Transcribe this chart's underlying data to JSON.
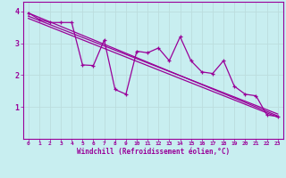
{
  "xlabel": "Windchill (Refroidissement éolien,°C)",
  "background_color": "#c8eef0",
  "plot_color": "#990099",
  "grid_color": "#bbdddd",
  "xlim": [
    -0.5,
    23.5
  ],
  "ylim": [
    0,
    4.3
  ],
  "xticks": [
    0,
    1,
    2,
    3,
    4,
    5,
    6,
    7,
    8,
    9,
    10,
    11,
    12,
    13,
    14,
    15,
    16,
    17,
    18,
    19,
    20,
    21,
    22,
    23
  ],
  "yticks": [
    1,
    2,
    3,
    4
  ],
  "line1_x": [
    0,
    1,
    2,
    3,
    4,
    5,
    6,
    7,
    8,
    9,
    10,
    11,
    12,
    13,
    14,
    15,
    16,
    17,
    18,
    19,
    20,
    21,
    22,
    23
  ],
  "line1_y": [
    3.95,
    3.75,
    3.65,
    3.65,
    3.65,
    2.32,
    2.3,
    3.1,
    1.55,
    1.4,
    2.75,
    2.7,
    2.85,
    2.45,
    3.2,
    2.45,
    2.1,
    2.05,
    2.45,
    1.65,
    1.4,
    1.35,
    0.75,
    0.7
  ],
  "line2_x": [
    0,
    23
  ],
  "line2_y": [
    3.95,
    0.72
  ],
  "line3_x": [
    0,
    23
  ],
  "line3_y": [
    3.85,
    0.78
  ],
  "line4_x": [
    0,
    23
  ],
  "line4_y": [
    3.78,
    0.68
  ]
}
